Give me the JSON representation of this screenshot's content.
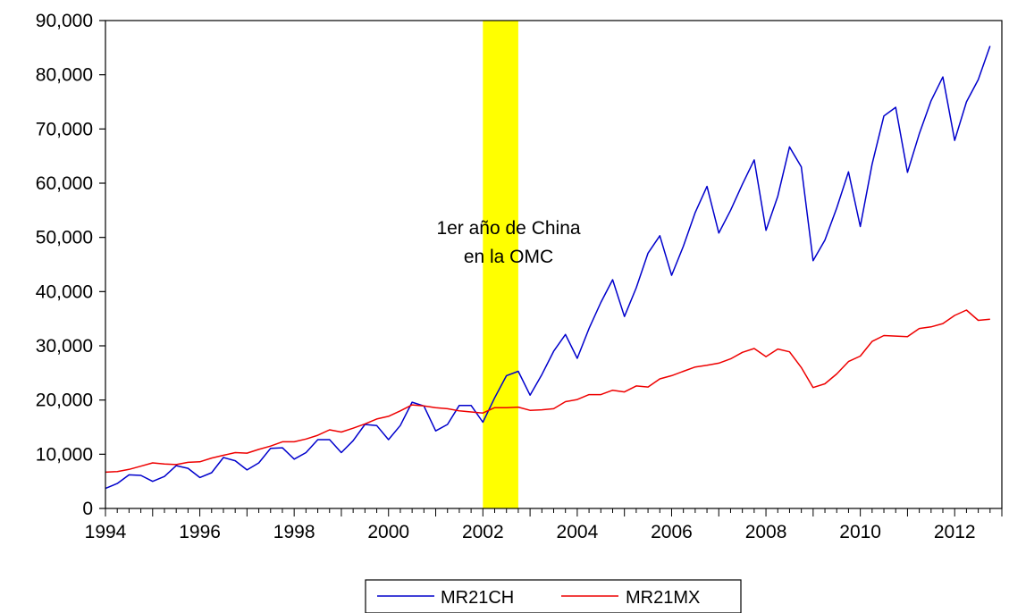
{
  "chart_data": {
    "type": "line",
    "title": "",
    "xlabel": "",
    "ylabel": "",
    "xlim": [
      1994.0,
      2013.0
    ],
    "ylim": [
      0,
      90000
    ],
    "y_ticks": [
      0,
      10000,
      20000,
      30000,
      40000,
      50000,
      60000,
      70000,
      80000,
      90000
    ],
    "y_tick_labels": [
      "0",
      "10,000",
      "20,000",
      "30,000",
      "40,000",
      "50,000",
      "60,000",
      "70,000",
      "80,000",
      "90,000"
    ],
    "x_tick_labels": [
      "1994",
      "1996",
      "1998",
      "2000",
      "2002",
      "2004",
      "2006",
      "2008",
      "2010",
      "2012"
    ],
    "grid": false,
    "legend_position": "bottom-center",
    "highlight": {
      "x_start": 2002.0,
      "x_end": 2002.75,
      "color": "#ffff00"
    },
    "annotation": {
      "lines": [
        "1er año de China",
        "en la OMC"
      ]
    },
    "frequency": "quarterly",
    "start": "1994Q1",
    "series": [
      {
        "name": "MR21CH",
        "color": "#0000cc",
        "values": [
          3700,
          4600,
          6200,
          6100,
          5000,
          5900,
          7900,
          7400,
          5700,
          6600,
          9400,
          8800,
          7100,
          8400,
          11100,
          11200,
          9100,
          10300,
          12700,
          12700,
          10300,
          12500,
          15500,
          15300,
          12700,
          15300,
          19600,
          18900,
          14300,
          15500,
          19000,
          19000,
          15900,
          20400,
          24500,
          25300,
          20900,
          24700,
          29000,
          32100,
          27700,
          33200,
          38000,
          42200,
          35400,
          40700,
          47100,
          50300,
          43000,
          48400,
          54600,
          59400,
          50800,
          55000,
          59800,
          64300,
          51300,
          57600,
          66700,
          63000,
          45700,
          49500,
          55400,
          62100,
          52000,
          63500,
          72400,
          74000,
          62000,
          69100,
          75200,
          79600,
          67900,
          75000,
          79100,
          85300
        ]
      },
      {
        "name": "MR21MX",
        "color": "#ee0000",
        "values": [
          6700,
          6800,
          7200,
          7800,
          8400,
          8200,
          8100,
          8500,
          8600,
          9300,
          9800,
          10300,
          10200,
          10900,
          11500,
          12300,
          12300,
          12800,
          13500,
          14500,
          14100,
          14800,
          15600,
          16500,
          17000,
          18000,
          19100,
          18900,
          18600,
          18400,
          18000,
          17800,
          17600,
          18600,
          18600,
          18700,
          18100,
          18200,
          18400,
          19700,
          20100,
          21000,
          21000,
          21800,
          21500,
          22600,
          22400,
          23900,
          24500,
          25300,
          26100,
          26400,
          26800,
          27600,
          28800,
          29500,
          28000,
          29400,
          28900,
          26000,
          22300,
          23000,
          24800,
          27100,
          28100,
          30800,
          31900,
          31800,
          31700,
          33200,
          33500,
          34100,
          35600,
          36600,
          34700,
          34900
        ]
      }
    ]
  }
}
